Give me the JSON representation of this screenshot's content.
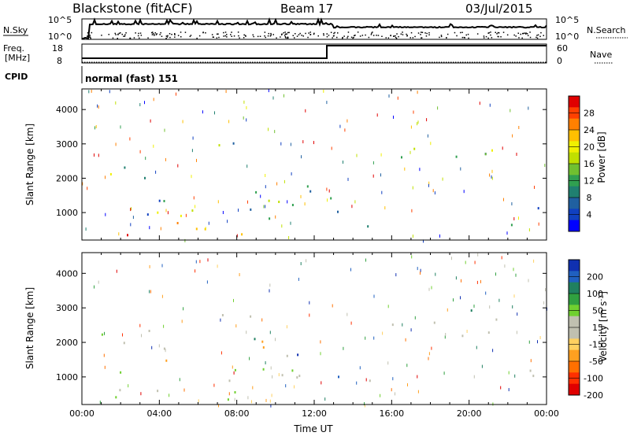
{
  "header": {
    "station": "Blackstone (fitACF)",
    "beam": "Beam 17",
    "date": "03/Jul/2015"
  },
  "top_panels": {
    "nsky": {
      "label": "N.Sky",
      "left_ticks": [
        "10^5",
        "10^0"
      ],
      "right_ticks": [
        "10^5",
        "10^0"
      ],
      "right_label": "N.Search"
    },
    "freq": {
      "label_line1": "Freq.",
      "label_line2": "[MHz]",
      "left_ticks": [
        "18",
        "8"
      ],
      "right_ticks": [
        "60",
        "0"
      ],
      "right_label": "Nave"
    },
    "cpid": {
      "label": "CPID",
      "text": "normal (fast) 151"
    }
  },
  "chart_data": [
    {
      "type": "heatmap",
      "panel": "power",
      "ylabel": "Slant Range [km]",
      "yticks": [
        1000,
        2000,
        3000,
        4000
      ],
      "ylim": [
        200,
        4600
      ],
      "xlim": [
        0,
        24
      ],
      "colorbar": {
        "label": "Power [dB]",
        "ticks": [
          "28",
          "24",
          "20",
          "16",
          "12",
          "8",
          "4"
        ],
        "colors": [
          "#e00000",
          "#ff4000",
          "#ff8000",
          "#ffc000",
          "#f0f000",
          "#c0e000",
          "#70c030",
          "#30a050",
          "#208070",
          "#2060a0",
          "#1040c0",
          "#0000ff"
        ]
      }
    },
    {
      "type": "heatmap",
      "panel": "velocity",
      "ylabel": "Slant Range [km]",
      "yticks": [
        1000,
        2000,
        3000,
        4000
      ],
      "ylim": [
        200,
        4600
      ],
      "xlim": [
        0,
        24
      ],
      "xticks": [
        "00:00",
        "04:00",
        "08:00",
        "12:00",
        "16:00",
        "20:00",
        "00:00"
      ],
      "xlabel": "Time UT",
      "colorbar": {
        "label": "Velocity [m s^-1]",
        "ticks": [
          "200",
          "100",
          "50",
          "15",
          "-15",
          "-50",
          "-100",
          "-200"
        ],
        "colors": [
          "#1030b0",
          "#2060c0",
          "#208060",
          "#30a040",
          "#70d030",
          "#c0c0b0",
          "#c0c0b0",
          "#ffd060",
          "#ffa020",
          "#ff7000",
          "#ff3000",
          "#e00000"
        ]
      }
    }
  ]
}
